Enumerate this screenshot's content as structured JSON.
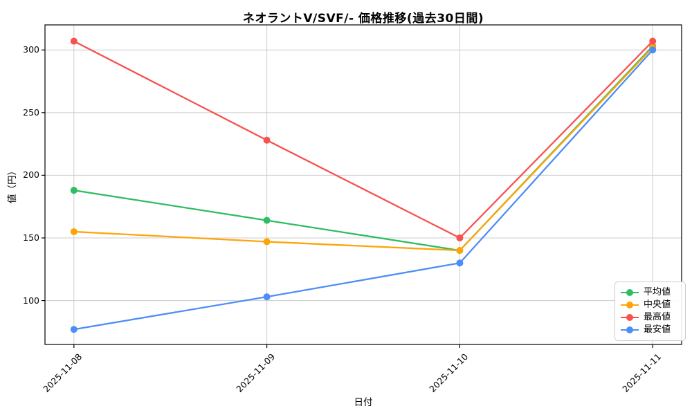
{
  "chart_data": {
    "type": "line",
    "title": "ネオラントV/SVF/- 価格推移(過去30日間)",
    "xlabel": "日付",
    "ylabel": "値（円）",
    "categories": [
      "2025-11-08",
      "2025-11-09",
      "2025-11-10",
      "2025-11-11"
    ],
    "series": [
      {
        "name": "平均値",
        "color": "#2ebd62",
        "values": [
          188,
          164,
          140,
          303
        ]
      },
      {
        "name": "中央値",
        "color": "#ffa408",
        "values": [
          155,
          147,
          140,
          302
        ]
      },
      {
        "name": "最高値",
        "color": "#f8514e",
        "values": [
          307,
          228,
          150,
          307
        ]
      },
      {
        "name": "最安値",
        "color": "#4d8df6",
        "values": [
          77,
          103,
          130,
          300
        ]
      }
    ],
    "yticks": [
      100,
      150,
      200,
      250,
      300
    ],
    "ylim": [
      65,
      320
    ],
    "xlim": [
      -0.15,
      3.15
    ],
    "grid": true,
    "grid_color": "#cccccc",
    "spine_color": "#000000",
    "legend_position": "lower right"
  }
}
